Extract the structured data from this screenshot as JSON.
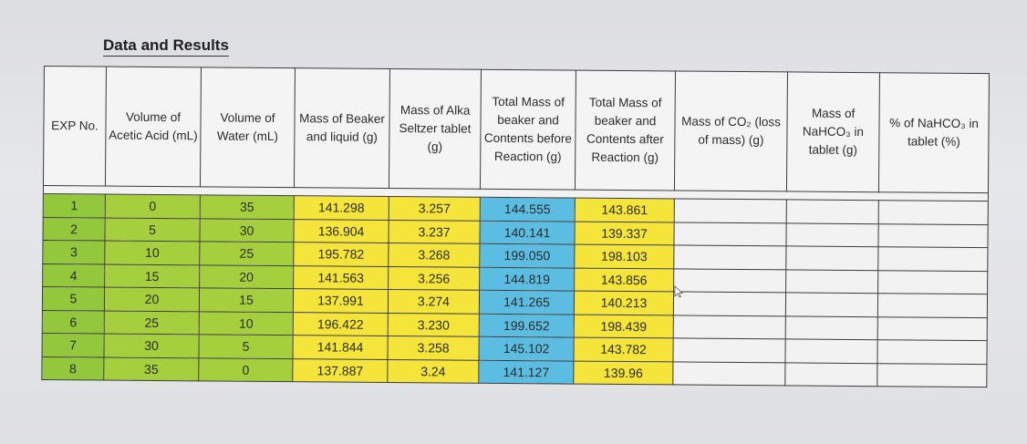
{
  "title": "Data and Results",
  "headers": {
    "exp": "EXP No.",
    "acid": "Volume of Acetic Acid (mL)",
    "water": "Volume of Water (mL)",
    "beaker_liquid": "Mass of Beaker and liquid (g)",
    "tablet": "Mass of Alka Seltzer tablet (g)",
    "before": "Total Mass of beaker and Contents before Reaction (g)",
    "after": "Total Mass of beaker and Contents after Reaction (g)",
    "co2": "Mass of CO₂ (loss of mass) (g)",
    "nahco3": "Mass of NaHCO₃ in tablet (g)",
    "percent": "% of NaHCO₃ in tablet (%)"
  },
  "rows": [
    {
      "exp": "1",
      "acid": "0",
      "water": "35",
      "beaker_liquid": "141.298",
      "tablet": "3.257",
      "before": "144.555",
      "after": "143.861"
    },
    {
      "exp": "2",
      "acid": "5",
      "water": "30",
      "beaker_liquid": "136.904",
      "tablet": "3.237",
      "before": "140.141",
      "after": "139.337"
    },
    {
      "exp": "3",
      "acid": "10",
      "water": "25",
      "beaker_liquid": "195.782",
      "tablet": "3.268",
      "before": "199.050",
      "after": "198.103"
    },
    {
      "exp": "4",
      "acid": "15",
      "water": "20",
      "beaker_liquid": "141.563",
      "tablet": "3.256",
      "before": "144.819",
      "after": "143.856"
    },
    {
      "exp": "5",
      "acid": "20",
      "water": "15",
      "beaker_liquid": "137.991",
      "tablet": "3.274",
      "before": "141.265",
      "after": "140.213"
    },
    {
      "exp": "6",
      "acid": "25",
      "water": "10",
      "beaker_liquid": "196.422",
      "tablet": "3.230",
      "before": "199.652",
      "after": "198.439"
    },
    {
      "exp": "7",
      "acid": "30",
      "water": "5",
      "beaker_liquid": "141.844",
      "tablet": "3.258",
      "before": "145.102",
      "after": "143.782"
    },
    {
      "exp": "8",
      "acid": "35",
      "water": "0",
      "beaker_liquid": "137.887",
      "tablet": "3.24",
      "before": "141.127",
      "after": "139.96"
    }
  ],
  "colors": {
    "exp_green": "#93c83c",
    "volume_green": "#a6cf3e",
    "mass_yellow": "#f5e43a",
    "before_blue": "#5cbde2"
  }
}
